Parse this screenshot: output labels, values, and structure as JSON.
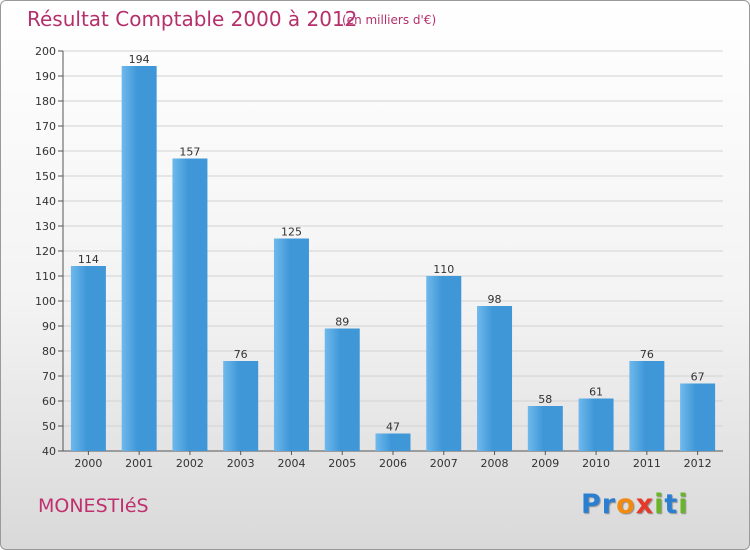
{
  "header": {
    "title": "Résultat Comptable 2000 à 2012",
    "subtitle": "(en milliers d'€)"
  },
  "footer": {
    "commune": "MONESTIéS",
    "logo_letters": [
      {
        "char": "P",
        "color": "#2a7fd1"
      },
      {
        "char": "r",
        "color": "#2a7fd1"
      },
      {
        "char": "o",
        "color": "#f28a10"
      },
      {
        "char": "x",
        "color": "#e53a2a"
      },
      {
        "char": "i",
        "color": "#6ab42a"
      },
      {
        "char": "t",
        "color": "#2a7fd1"
      },
      {
        "char": "i",
        "color": "#6ab42a"
      }
    ]
  },
  "colors": {
    "bar_fill": "#3f97d8",
    "bar_highlight": "#6fb9ec",
    "grid": "#d2d2d2",
    "title": "#b5306b"
  },
  "chart_data": {
    "type": "bar",
    "title": "Résultat Comptable 2000 à 2012",
    "subtitle": "(en milliers d'€)",
    "xlabel": "",
    "ylabel": "",
    "ylim": [
      40,
      200
    ],
    "ytick_step": 10,
    "grid": true,
    "legend": "none",
    "categories": [
      "2000",
      "2001",
      "2002",
      "2003",
      "2004",
      "2005",
      "2006",
      "2007",
      "2008",
      "2009",
      "2010",
      "2011",
      "2012"
    ],
    "values": [
      114,
      194,
      157,
      76,
      125,
      89,
      47,
      110,
      98,
      58,
      61,
      76,
      67
    ]
  }
}
